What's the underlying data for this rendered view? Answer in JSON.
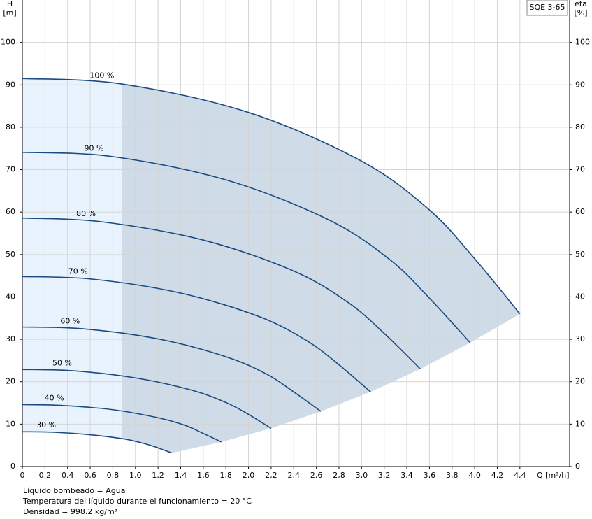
{
  "chart_data": {
    "type": "line",
    "legend_label": "SQE 3-65",
    "y_axis_label": [
      "H",
      "[m]"
    ],
    "y2_axis_label": [
      "eta",
      "[%]"
    ],
    "x_axis_label": "Q [m³/h]",
    "notes": [
      "Líquido bombeado = Agua",
      "Temperatura del líquido durante el funcionamiento = 20 °C",
      "Densidad = 998.2 kg/m³"
    ],
    "xlim": [
      0,
      4.84
    ],
    "ylim": [
      0,
      110
    ],
    "y2lim": [
      0,
      110
    ],
    "light_region_xlim": [
      0,
      0.88
    ],
    "grid": true,
    "xticks": [
      0,
      {
        "value": 0.2,
        "label": "0,2"
      },
      {
        "value": 0.4,
        "label": "0,4"
      },
      {
        "value": 0.6,
        "label": "0,6"
      },
      {
        "value": 0.8,
        "label": "0,8"
      },
      {
        "value": 1.0,
        "label": "1,0"
      },
      {
        "value": 1.2,
        "label": "1,2"
      },
      {
        "value": 1.4,
        "label": "1,4"
      },
      {
        "value": 1.6,
        "label": "1,6"
      },
      {
        "value": 1.8,
        "label": "1,8"
      },
      {
        "value": 2.0,
        "label": "2,0"
      },
      {
        "value": 2.2,
        "label": "2,2"
      },
      {
        "value": 2.4,
        "label": "2,4"
      },
      {
        "value": 2.6,
        "label": "2,6"
      },
      {
        "value": 2.8,
        "label": "2,8"
      },
      {
        "value": 3.0,
        "label": "3,0"
      },
      {
        "value": 3.2,
        "label": "3,2"
      },
      {
        "value": 3.4,
        "label": "3,4"
      },
      {
        "value": 3.6,
        "label": "3,6"
      },
      {
        "value": 3.8,
        "label": "3,8"
      },
      {
        "value": 4.0,
        "label": "4,0"
      },
      {
        "value": 4.2,
        "label": "4,2"
      },
      {
        "value": 4.4,
        "label": "4,4"
      }
    ],
    "yticks": [
      0,
      10,
      20,
      30,
      40,
      50,
      60,
      70,
      80,
      90,
      100
    ],
    "y2ticks": [
      0,
      10,
      20,
      30,
      40,
      50,
      60,
      70,
      80,
      90,
      100
    ],
    "series": [
      {
        "name": "100 %",
        "color": "#1b4a80",
        "x": [
          0,
          0.88,
          2.0,
          3.0,
          3.6,
          4.0,
          4.4
        ],
        "values": [
          91.5,
          90.2,
          83.5,
          72,
          60.5,
          49,
          36
        ]
      },
      {
        "name": "90 %",
        "color": "#1b4a80",
        "x": [
          0,
          0.792,
          1.8,
          2.7,
          3.24,
          3.6,
          3.96
        ],
        "values": [
          74.1,
          73.1,
          67.6,
          58.3,
          49,
          39.7,
          29.2
        ]
      },
      {
        "name": "80 %",
        "color": "#1b4a80",
        "x": [
          0,
          0.704,
          1.6,
          2.4,
          2.88,
          3.2,
          3.52
        ],
        "values": [
          58.6,
          57.7,
          53.4,
          46.1,
          38.7,
          31.4,
          23.0
        ]
      },
      {
        "name": "70 %",
        "color": "#1b4a80",
        "x": [
          0,
          0.616,
          1.4,
          2.1,
          2.52,
          2.8,
          3.08
        ],
        "values": [
          44.8,
          44.2,
          40.9,
          35.3,
          29.6,
          24.0,
          17.6
        ]
      },
      {
        "name": "60 %",
        "color": "#1b4a80",
        "x": [
          0,
          0.528,
          1.2,
          1.8,
          2.16,
          2.4,
          2.64
        ],
        "values": [
          32.9,
          32.5,
          30.1,
          25.9,
          21.8,
          17.6,
          13.0
        ]
      },
      {
        "name": "50 %",
        "color": "#1b4a80",
        "x": [
          0,
          0.44,
          1.0,
          1.5,
          1.8,
          2.0,
          2.2
        ],
        "values": [
          22.9,
          22.6,
          20.9,
          18.0,
          15.1,
          12.3,
          9.0
        ]
      },
      {
        "name": "40 %",
        "color": "#1b4a80",
        "x": [
          0,
          0.352,
          0.8,
          1.2,
          1.44,
          1.6,
          1.76
        ],
        "values": [
          14.6,
          14.4,
          13.4,
          11.5,
          9.7,
          7.8,
          5.8
        ]
      },
      {
        "name": "30 %",
        "color": "#1b4a80",
        "x": [
          0,
          0.264,
          0.6,
          0.9,
          1.08,
          1.2,
          1.32
        ],
        "values": [
          8.2,
          8.1,
          7.5,
          6.5,
          5.4,
          4.4,
          3.2
        ]
      }
    ]
  }
}
